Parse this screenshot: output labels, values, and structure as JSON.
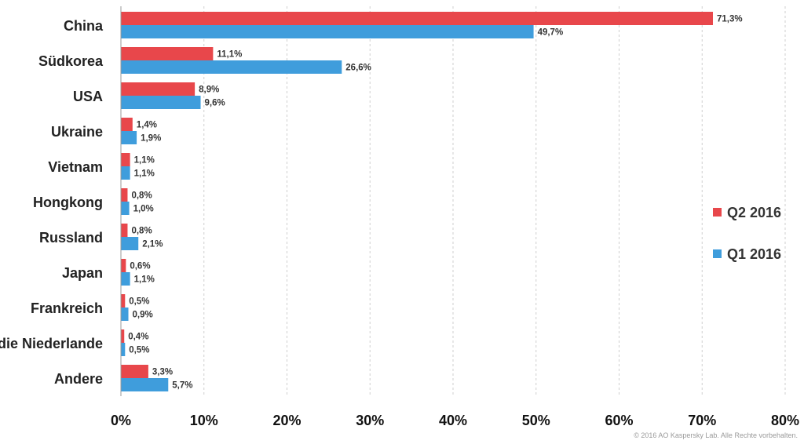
{
  "chart_data": {
    "type": "bar",
    "orientation": "horizontal",
    "categories": [
      "China",
      "Südkorea",
      "USA",
      "Ukraine",
      "Vietnam",
      "Hongkong",
      "Russland",
      "Japan",
      "Frankreich",
      "die Niederlande",
      "Andere"
    ],
    "series": [
      {
        "name": "Q2 2016",
        "color": "#e8474b",
        "values": [
          71.3,
          11.1,
          8.9,
          1.4,
          1.1,
          0.8,
          0.8,
          0.6,
          0.5,
          0.4,
          3.3
        ],
        "labels": [
          "71,3%",
          "11,1%",
          "8,9%",
          "1,4%",
          "1,1%",
          "0,8%",
          "0,8%",
          "0,6%",
          "0,5%",
          "0,4%",
          "3,3%"
        ]
      },
      {
        "name": "Q1 2016",
        "color": "#3f9ddc",
        "values": [
          49.7,
          26.6,
          9.6,
          1.9,
          1.1,
          1.0,
          2.1,
          1.1,
          0.9,
          0.5,
          5.7
        ],
        "labels": [
          "49,7%",
          "26,6%",
          "9,6%",
          "1,9%",
          "1,1%",
          "1,0%",
          "2,1%",
          "1,1%",
          "0,9%",
          "0,5%",
          "5,7%"
        ]
      }
    ],
    "xlim": [
      0,
      80
    ],
    "xticks": [
      0,
      10,
      20,
      30,
      40,
      50,
      60,
      70,
      80
    ],
    "xtick_labels": [
      "0%",
      "10%",
      "20%",
      "30%",
      "40%",
      "50%",
      "60%",
      "70%",
      "80%"
    ],
    "grid": true,
    "legend_position": "right"
  },
  "footer": {
    "copyright": "© 2016 AO Kaspersky Lab. Alle Rechte vorbehalten."
  }
}
